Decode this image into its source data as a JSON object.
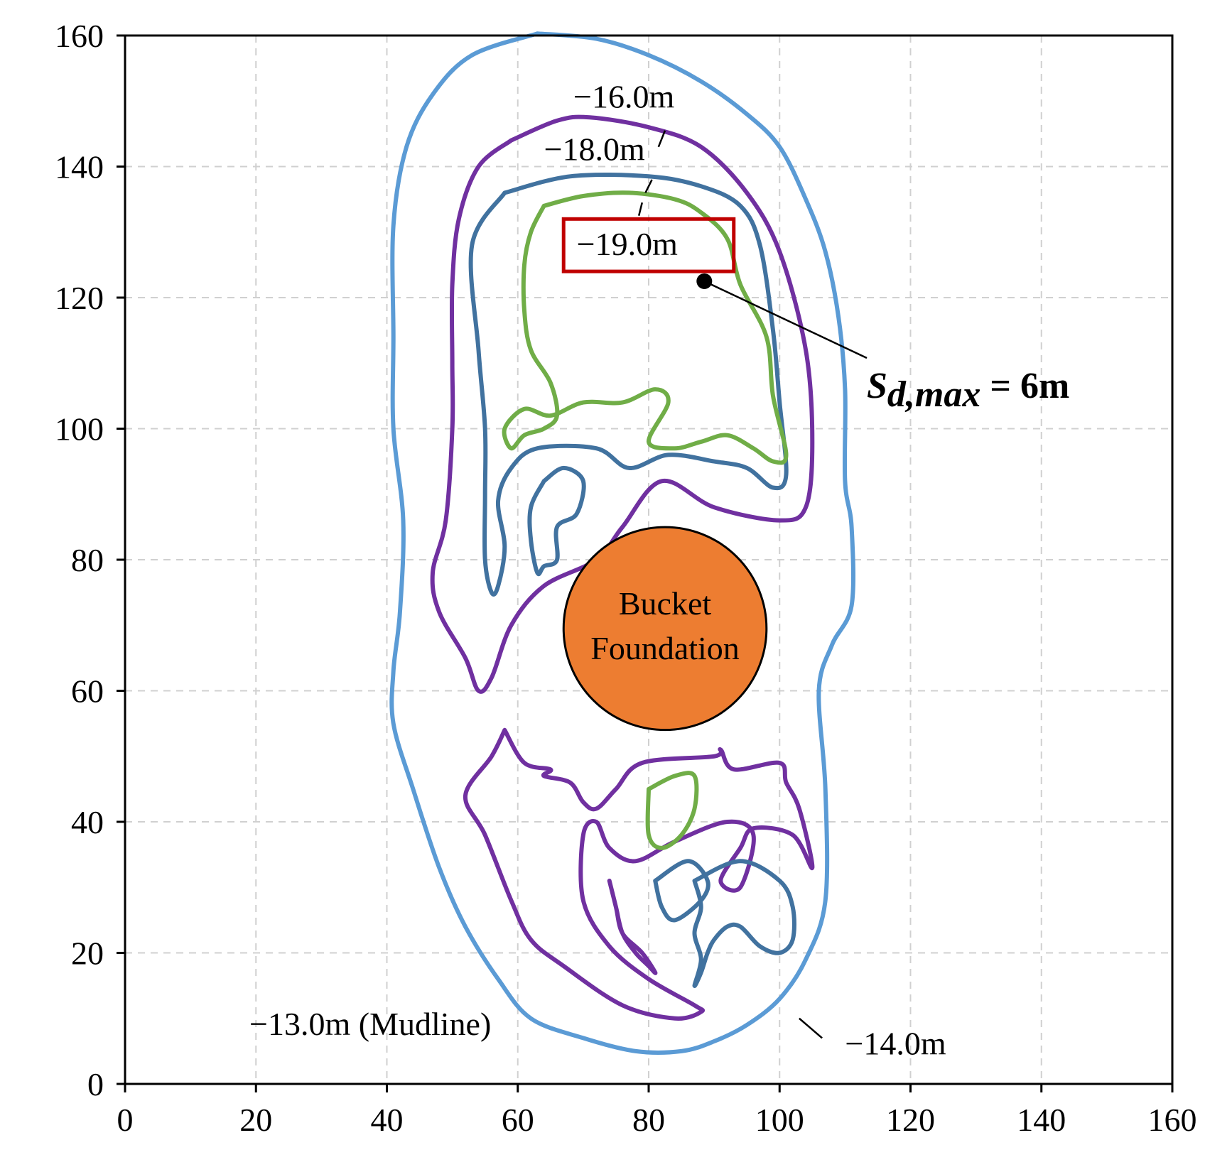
{
  "chart_data": {
    "type": "contour",
    "title": "",
    "xlabel": "",
    "ylabel": "",
    "xlim": [
      0,
      160
    ],
    "ylim": [
      0,
      160
    ],
    "xticks": [
      0,
      20,
      40,
      60,
      80,
      100,
      120,
      140,
      160
    ],
    "yticks": [
      0,
      20,
      40,
      60,
      80,
      100,
      120,
      140,
      160
    ],
    "grid": true,
    "contours": [
      {
        "level_label": "−14.0m",
        "color": "#5b9bd5",
        "rings": [
          [
            [
              63,
              160.3
            ],
            [
              72,
              159.5
            ],
            [
              80,
              157
            ],
            [
              88,
              153
            ],
            [
              95,
              148
            ],
            [
              100,
              143
            ],
            [
              104,
              135
            ],
            [
              107,
              127
            ],
            [
              109,
              117
            ],
            [
              110,
              106
            ],
            [
              110,
              92
            ],
            [
              111,
              85
            ],
            [
              111,
              73
            ],
            [
              108,
              67
            ],
            [
              106,
              60
            ],
            [
              107,
              45
            ],
            [
              107,
              28
            ],
            [
              104,
              19
            ],
            [
              100,
              13
            ],
            [
              95,
              9
            ],
            [
              90,
              6.5
            ],
            [
              85,
              5
            ],
            [
              78,
              5
            ],
            [
              70,
              7
            ],
            [
              62,
              10
            ],
            [
              57,
              16
            ],
            [
              52,
              24
            ],
            [
              48,
              33
            ],
            [
              44,
              45
            ],
            [
              41,
              55
            ],
            [
              41,
              63
            ],
            [
              42,
              72
            ],
            [
              42.5,
              86
            ],
            [
              41,
              100
            ],
            [
              41,
              114
            ],
            [
              41,
              131
            ],
            [
              43,
              143
            ],
            [
              47,
              151
            ],
            [
              53,
              157
            ],
            [
              63,
              160.3
            ]
          ]
        ]
      },
      {
        "level_label": "−16.0m",
        "color": "#7030a0",
        "rings": [
          [
            [
              59,
              144
            ],
            [
              66,
              147
            ],
            [
              71,
              147.5
            ],
            [
              80,
              146
            ],
            [
              88,
              143
            ],
            [
              95,
              136
            ],
            [
              100,
              127
            ],
            [
              104,
              112
            ],
            [
              105,
              98
            ],
            [
              104,
              88
            ],
            [
              100,
              86
            ],
            [
              90,
              88
            ],
            [
              82,
              92
            ],
            [
              76,
              85
            ],
            [
              72,
              80
            ],
            [
              64,
              76
            ],
            [
              59,
              70
            ],
            [
              56,
              62
            ],
            [
              54,
              60
            ],
            [
              52,
              65
            ],
            [
              48,
              72
            ],
            [
              47,
              78
            ],
            [
              49,
              86
            ],
            [
              50,
              100
            ],
            [
              50,
              110
            ],
            [
              50,
              122
            ],
            [
              51,
              132
            ],
            [
              54,
              140
            ],
            [
              59,
              144
            ]
          ],
          [
            [
              58,
              54
            ],
            [
              61,
              49
            ],
            [
              65,
              48
            ],
            [
              64,
              47
            ],
            [
              68,
              46
            ],
            [
              70,
              43
            ],
            [
              72,
              42
            ],
            [
              75,
              45
            ],
            [
              79,
              49
            ],
            [
              90,
              50
            ],
            [
              91,
              51
            ],
            [
              93,
              48
            ],
            [
              100,
              49
            ],
            [
              101,
              46
            ],
            [
              103,
              42
            ],
            [
              105,
              33
            ],
            [
              102,
              38
            ],
            [
              96,
              39
            ],
            [
              94,
              36
            ],
            [
              91,
              31
            ],
            [
              94,
              30
            ],
            [
              96,
              38
            ],
            [
              92,
              40
            ],
            [
              84,
              37
            ],
            [
              78,
              34
            ],
            [
              74,
              36
            ],
            [
              72,
              40
            ],
            [
              70,
              38
            ],
            [
              70,
              28
            ],
            [
              74,
              21
            ],
            [
              80,
              16
            ],
            [
              87,
              12
            ],
            [
              88,
              11
            ],
            [
              84,
              10
            ],
            [
              76,
              12
            ],
            [
              67,
              18
            ],
            [
              62,
              22
            ],
            [
              59,
              28
            ],
            [
              55,
              38
            ],
            [
              52,
              44
            ],
            [
              56,
              50
            ],
            [
              58,
              54
            ]
          ],
          [
            [
              74,
              31
            ],
            [
              75,
              27
            ],
            [
              76,
              23
            ],
            [
              79,
              20
            ],
            [
              81,
              17
            ],
            [
              80,
              18
            ],
            [
              78,
              20
            ],
            [
              76,
              23
            ],
            [
              75,
              27
            ],
            [
              74,
              31
            ]
          ]
        ]
      },
      {
        "level_label": "−18.0m",
        "color": "#41729f",
        "rings": [
          [
            [
              58,
              136
            ],
            [
              68,
              138.5
            ],
            [
              80,
              138.5
            ],
            [
              88,
              137
            ],
            [
              94,
              134
            ],
            [
              97,
              128
            ],
            [
              99,
              115
            ],
            [
              100,
              104
            ],
            [
              101,
              93
            ],
            [
              99,
              91
            ],
            [
              95,
              94
            ],
            [
              90,
              95
            ],
            [
              83,
              96
            ],
            [
              77,
              94
            ],
            [
              72,
              97
            ],
            [
              63,
              97
            ],
            [
              59,
              94
            ],
            [
              57,
              89
            ],
            [
              58,
              82
            ],
            [
              57,
              76
            ],
            [
              56,
              75
            ],
            [
              55,
              80
            ],
            [
              55,
              90
            ],
            [
              55,
              100
            ],
            [
              54,
              112
            ],
            [
              53,
              128
            ],
            [
              58,
              136
            ]
          ],
          [
            [
              64,
              92
            ],
            [
              67,
              94
            ],
            [
              70,
              92
            ],
            [
              69,
              87
            ],
            [
              66,
              85
            ],
            [
              66,
              80
            ],
            [
              64,
              79
            ],
            [
              63,
              78
            ],
            [
              62,
              83
            ],
            [
              62,
              88
            ],
            [
              64,
              92
            ]
          ],
          [
            [
              81,
              31
            ],
            [
              86,
              34
            ],
            [
              89,
              31
            ],
            [
              88,
              28
            ],
            [
              84,
              25
            ],
            [
              82,
              27
            ],
            [
              81,
              31
            ]
          ],
          [
            [
              87,
              31
            ],
            [
              94,
              34
            ],
            [
              100,
              31
            ],
            [
              102,
              27
            ],
            [
              102,
              22
            ],
            [
              100,
              20
            ],
            [
              97,
              21
            ],
            [
              94,
              24
            ],
            [
              92,
              24
            ],
            [
              90,
              22
            ],
            [
              89,
              20
            ],
            [
              88,
              17
            ],
            [
              87,
              15
            ],
            [
              88,
              19
            ],
            [
              87,
              23
            ],
            [
              88,
              27
            ],
            [
              87,
              31
            ]
          ]
        ]
      },
      {
        "level_label": "−19.0m",
        "color": "#70ad47",
        "rings": [
          [
            [
              64,
              134
            ],
            [
              70,
              135.5
            ],
            [
              77,
              136
            ],
            [
              84,
              135
            ],
            [
              88,
              133
            ],
            [
              92,
              129
            ],
            [
              94,
              122
            ],
            [
              98,
              114
            ],
            [
              99,
              105
            ],
            [
              101,
              96
            ],
            [
              99,
              95
            ],
            [
              96,
              97
            ],
            [
              92,
              99
            ],
            [
              88,
              98
            ],
            [
              84,
              97
            ],
            [
              80,
              98
            ],
            [
              83,
              104
            ],
            [
              81,
              106
            ],
            [
              76,
              104
            ],
            [
              70,
              104
            ],
            [
              65,
              102
            ],
            [
              61,
              103
            ],
            [
              58,
              100
            ],
            [
              59,
              97
            ],
            [
              61,
              99
            ],
            [
              64,
              100
            ],
            [
              66,
              102
            ],
            [
              65,
              107
            ],
            [
              62,
              112
            ],
            [
              61,
              118
            ],
            [
              61,
              125
            ],
            [
              62,
              130
            ],
            [
              64,
              134
            ]
          ],
          [
            [
              80,
              45
            ],
            [
              84,
              47
            ],
            [
              87,
              47
            ],
            [
              87,
              42
            ],
            [
              85,
              38
            ],
            [
              82,
              36
            ],
            [
              80,
              38
            ],
            [
              80,
              45
            ]
          ]
        ]
      }
    ],
    "bucket_foundation": {
      "center": [
        82.5,
        69.5
      ],
      "radius": 15.5,
      "label": [
        "Bucket",
        "Foundation"
      ],
      "color": "#ed7d31"
    },
    "marker": {
      "x": 88.5,
      "y": 122.5,
      "label_var": "S",
      "label_sub": "d,max",
      "label_value": " = 6m"
    },
    "highlight_box": {
      "x0": 67,
      "x1": 93,
      "y0": 124,
      "y1": 132,
      "color": "#c00000"
    },
    "annotations": [
      {
        "text": "−16.0m",
        "pos": [
          68.5,
          149
        ],
        "leader": [
          [
            81.5,
            143
          ],
          [
            82.5,
            145.5
          ]
        ]
      },
      {
        "text": "−18.0m",
        "pos": [
          64,
          141
        ],
        "leader": [
          [
            79.5,
            136
          ],
          [
            80.5,
            138
          ]
        ]
      },
      {
        "text": "−19.0m",
        "pos": [
          69,
          126.5
        ],
        "leader": [
          [
            78.5,
            132.5
          ],
          [
            79,
            134.5
          ]
        ]
      },
      {
        "text": "−13.0m (Mudline)",
        "pos": [
          19,
          7.5
        ],
        "leader": null
      },
      {
        "text": "−14.0m",
        "pos": [
          110,
          4.5
        ],
        "leader": [
          [
            103,
            10
          ],
          [
            106.5,
            7
          ]
        ]
      }
    ]
  }
}
